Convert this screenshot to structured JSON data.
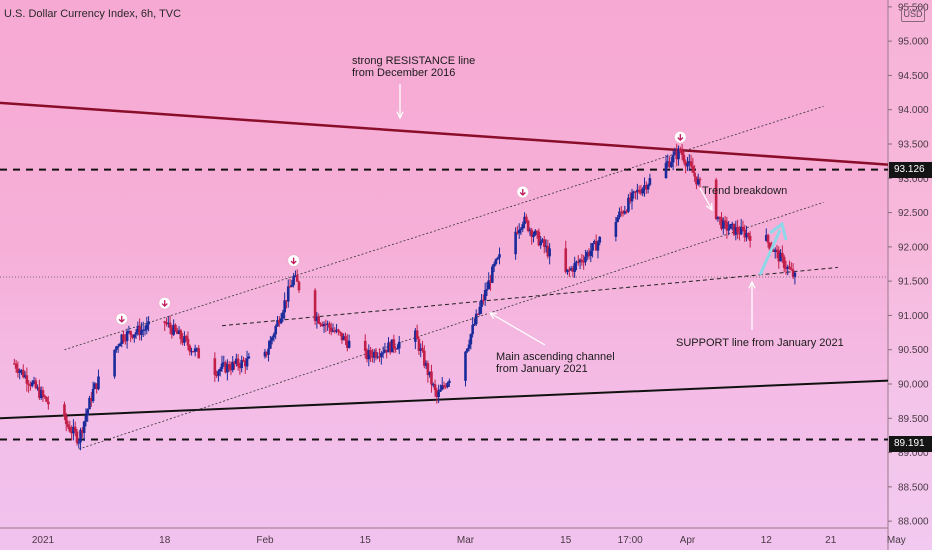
{
  "header": {
    "title": "U.S. Dollar Currency Index, 6h, TVC",
    "currency": "USD"
  },
  "annotations": {
    "resistance_1": "strong RESISTANCE line",
    "resistance_2": "from December 2016",
    "trend_breakdown": "Trend breakdown",
    "channel_1": "Main ascending channel",
    "channel_2": "from January 2021",
    "support": "SUPPORT line from January 2021"
  },
  "price_badges": {
    "upper": "93.126",
    "lower": "89.191"
  },
  "colors": {
    "bull": "#1a2a9a",
    "bear": "#c21f49",
    "resistance": "#8a0d2a",
    "support_line": "#111111",
    "channel": "#333333",
    "arrow_teal": "#8fd7e8"
  },
  "chart_data": {
    "type": "candlestick",
    "title": "U.S. Dollar Currency Index, 6h, TVC",
    "y_ticks": [
      "95.500",
      "95.000",
      "94.500",
      "94.000",
      "93.500",
      "93.000",
      "92.500",
      "92.000",
      "91.500",
      "91.000",
      "90.500",
      "90.000",
      "89.500",
      "89.000",
      "88.500",
      "88.000"
    ],
    "x_ticks": [
      "2021",
      "18",
      "Feb",
      "15",
      "Mar",
      "15",
      "17:00",
      "Apr",
      "12",
      "21",
      "May"
    ],
    "ylim": [
      87.9,
      95.6
    ],
    "horizontal_levels": [
      93.126,
      89.191
    ],
    "path": [
      {
        "d": "2020-12-28",
        "v": 90.3
      },
      {
        "d": "2021-01-06",
        "v": 89.2
      },
      {
        "d": "2021-01-08",
        "v": 89.9
      },
      {
        "d": "2021-01-12",
        "v": 90.7
      },
      {
        "d": "2021-01-18",
        "v": 90.9
      },
      {
        "d": "2021-01-25",
        "v": 90.2
      },
      {
        "d": "2021-02-01",
        "v": 90.4
      },
      {
        "d": "2021-02-05",
        "v": 91.55
      },
      {
        "d": "2021-02-08",
        "v": 91.0
      },
      {
        "d": "2021-02-15",
        "v": 90.4
      },
      {
        "d": "2021-02-22",
        "v": 90.7
      },
      {
        "d": "2021-02-25",
        "v": 89.8
      },
      {
        "d": "2021-03-01",
        "v": 90.5
      },
      {
        "d": "2021-03-05",
        "v": 91.7
      },
      {
        "d": "2021-03-09",
        "v": 92.4
      },
      {
        "d": "2021-03-15",
        "v": 91.6
      },
      {
        "d": "2021-03-19",
        "v": 92.0
      },
      {
        "d": "2021-03-25",
        "v": 92.8
      },
      {
        "d": "2021-03-31",
        "v": 93.4
      },
      {
        "d": "2021-04-06",
        "v": 92.3
      },
      {
        "d": "2021-04-12",
        "v": 92.1
      },
      {
        "d": "2021-04-16",
        "v": 91.55
      }
    ],
    "trend_lines": [
      {
        "name": "resistance",
        "from": {
          "d": "2020-12-26",
          "v": 94.1
        },
        "to": {
          "d": "2021-04-29",
          "v": 93.2
        }
      },
      {
        "name": "support",
        "from": {
          "d": "2020-12-26",
          "v": 89.5
        },
        "to": {
          "d": "2021-04-29",
          "v": 90.05
        }
      },
      {
        "name": "channel-upper",
        "from": {
          "d": "2021-01-04",
          "v": 90.5
        },
        "to": {
          "d": "2021-04-20",
          "v": 94.05
        }
      },
      {
        "name": "channel-lower",
        "from": {
          "d": "2021-01-06",
          "v": 89.05
        },
        "to": {
          "d": "2021-04-20",
          "v": 92.65
        }
      },
      {
        "name": "support-jan",
        "from": {
          "d": "2021-01-26",
          "v": 90.85
        },
        "to": {
          "d": "2021-04-22",
          "v": 91.7
        }
      }
    ],
    "x_range": [
      "2020-12-26",
      "2021-04-29"
    ]
  }
}
